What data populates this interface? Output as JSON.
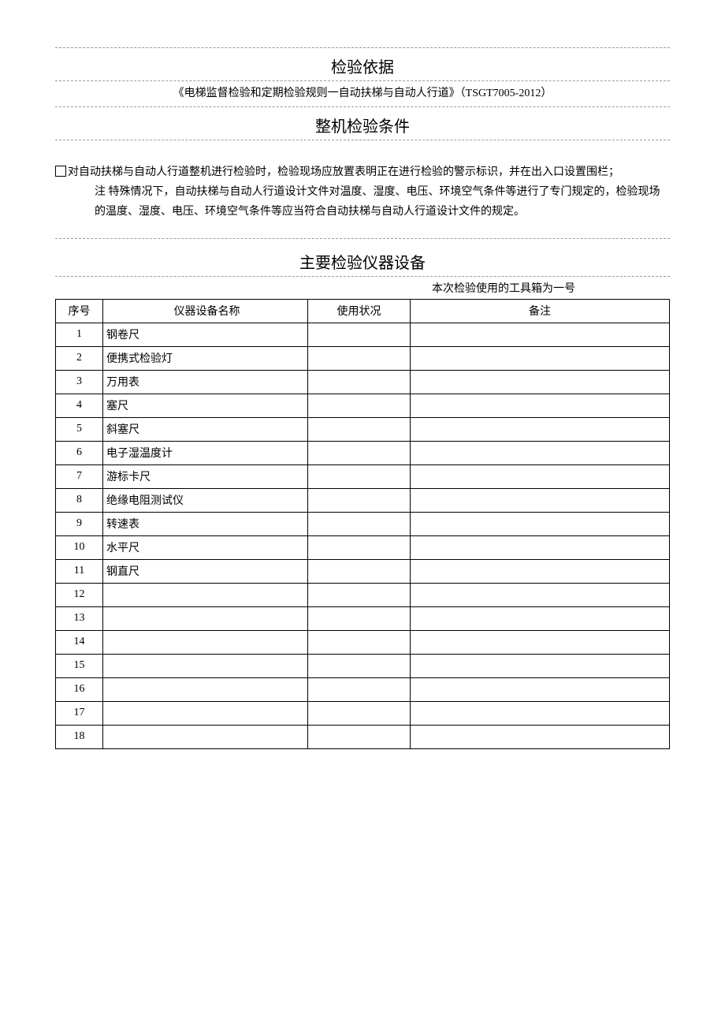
{
  "section1": {
    "title": "检验依据",
    "basis_text": "《电梯监督检验和定期检验规则一自动扶梯与自动人行道》（TSGT7005-2012）"
  },
  "section2": {
    "title": "整机检验条件",
    "line1": "对自动扶梯与自动人行道整机进行检验时，检验现场应放置表明正在进行检验的警示标识，并在出入口设置围栏；",
    "note_label": "注",
    "note_body": " 特殊情况下，自动扶梯与自动人行道设计文件对温度、湿度、电压、环境空气条件等进行了专门规定的，检验现场的温度、湿度、电压、环境空气条件等应当符合自动扶梯与自动人行道设计文件的规定。"
  },
  "section3": {
    "title": "主要检验仪器设备",
    "toolbox_line": "本次检验使用的工具箱为一号",
    "columns": {
      "seq": "序号",
      "name": "仪器设备名称",
      "status": "使用状况",
      "note": "备注"
    },
    "rows": [
      {
        "seq": "1",
        "name": "钢卷尺",
        "status": "",
        "note": ""
      },
      {
        "seq": "2",
        "name": "便携式检验灯",
        "status": "",
        "note": ""
      },
      {
        "seq": "3",
        "name": "万用表",
        "status": "",
        "note": ""
      },
      {
        "seq": "4",
        "name": "塞尺",
        "status": "",
        "note": ""
      },
      {
        "seq": "5",
        "name": "斜塞尺",
        "status": "",
        "note": ""
      },
      {
        "seq": "6",
        "name": "电子湿温度计",
        "status": "",
        "note": ""
      },
      {
        "seq": "7",
        "name": "游标卡尺",
        "status": "",
        "note": ""
      },
      {
        "seq": "8",
        "name": "绝缘电阻测试仪",
        "status": "",
        "note": ""
      },
      {
        "seq": "9",
        "name": "转速表",
        "status": "",
        "note": ""
      },
      {
        "seq": "10",
        "name": "水平尺",
        "status": "",
        "note": ""
      },
      {
        "seq": "11",
        "name": "钢直尺",
        "status": "",
        "note": ""
      },
      {
        "seq": "12",
        "name": "",
        "status": "",
        "note": ""
      },
      {
        "seq": "13",
        "name": "",
        "status": "",
        "note": ""
      },
      {
        "seq": "14",
        "name": "",
        "status": "",
        "note": ""
      },
      {
        "seq": "15",
        "name": "",
        "status": "",
        "note": ""
      },
      {
        "seq": "16",
        "name": "",
        "status": "",
        "note": ""
      },
      {
        "seq": "17",
        "name": "",
        "status": "",
        "note": ""
      },
      {
        "seq": "18",
        "name": "",
        "status": "",
        "note": ""
      }
    ]
  }
}
